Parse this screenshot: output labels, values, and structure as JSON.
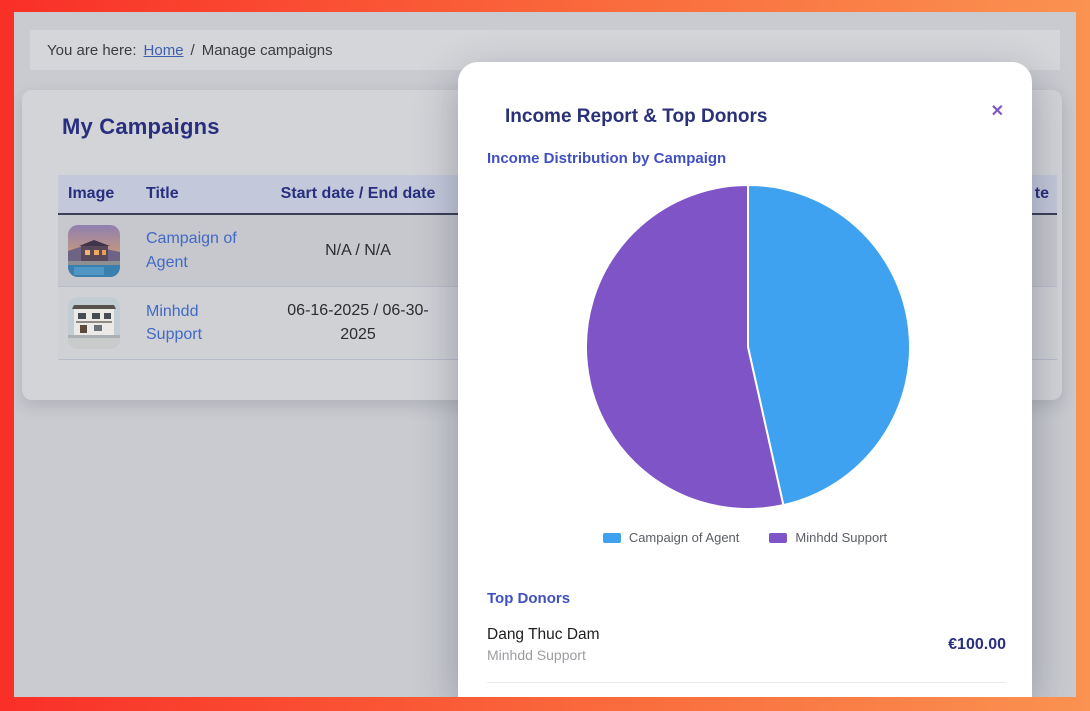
{
  "breadcrumb": {
    "prefix": "You are here:",
    "home_label": "Home",
    "separator": "/",
    "current": "Manage campaigns"
  },
  "campaigns": {
    "title": "My Campaigns",
    "table": {
      "headers": [
        "Image",
        "Title",
        "Start date / End date",
        "te"
      ],
      "rows": [
        {
          "photo": "villa-with-pool-at-dusk",
          "title": "Campaign of Agent",
          "dates": "N/A / N/A"
        },
        {
          "photo": "white-two-story-house",
          "title": "Minhdd Support",
          "dates": "06-16-2025 / 06-30-2025"
        }
      ]
    }
  },
  "modal": {
    "title": "Income Report & Top Donors",
    "close_icon": "✕",
    "chart_heading": "Income Distribution by Campaign",
    "top_donors": {
      "heading": "Top Donors",
      "donors": [
        {
          "name": "Dang Thuc Dam",
          "campaign": "Minhdd Support",
          "amount": "€100.00"
        }
      ]
    }
  },
  "chart_data": {
    "type": "pie",
    "title": "Income Distribution by Campaign",
    "categories": [
      "Campaign of Agent",
      "Minhdd Support"
    ],
    "values": [
      46.5,
      53.5
    ],
    "values_unit": "percent (estimated from slice angles)",
    "colors": [
      "#3fa2f0",
      "#7e54c7"
    ],
    "legend_position": "bottom",
    "start_angle_deg": 0,
    "direction": "clockwise"
  },
  "colors": {
    "frame_red": "#f92f28",
    "frame_orange": "#fa9251",
    "navy_heading": "#272f7e",
    "indigo_heading": "#4150c0",
    "link_blue": "#4169c6",
    "close_purple": "#7e57c2"
  }
}
